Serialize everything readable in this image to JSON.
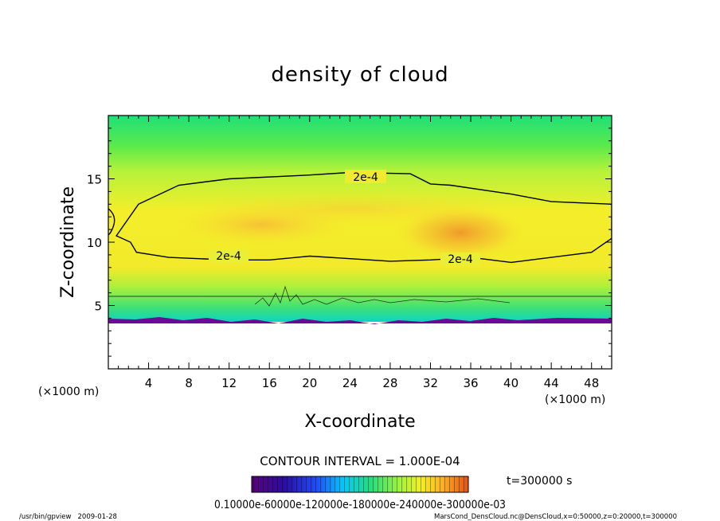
{
  "chart_data": {
    "type": "heatmap",
    "title": "density of cloud",
    "xlabel": "X-coordinate",
    "ylabel": "Z-coordinate",
    "x_unit": "(×1000 m)",
    "z_unit": "(×1000 m)",
    "xlim": [
      0,
      50
    ],
    "ylim": [
      0,
      20
    ],
    "x_ticks": [
      "4",
      "8",
      "12",
      "16",
      "20",
      "24",
      "28",
      "32",
      "36",
      "40",
      "44",
      "48"
    ],
    "y_ticks": [
      "5",
      "10",
      "15"
    ],
    "contour_label": "2e-4",
    "contour_interval_text": "CONTOUR INTERVAL = 1.000E-04",
    "time_text": "t=300000 s",
    "colorbar_labels_text": "0.10000e-60000e-120000e-180000e-240000e-300000e-03",
    "colormap": [
      "#5b007a",
      "#2a0ca8",
      "#1e4cff",
      "#00c8ff",
      "#22e07a",
      "#9cf53a",
      "#f2f01e",
      "#ffb020",
      "#e85010"
    ],
    "footer_left": "/usr/bin/gpview   2009-01-28",
    "footer_right": "MarsCond_DensCloud.nc@DensCloud,x=0:50000,z=0:20000,t=300000",
    "cloud_base_z": 4.5,
    "contour_2e4_outline": [
      [
        0.8,
        10.5
      ],
      [
        3,
        13
      ],
      [
        7,
        14.5
      ],
      [
        12,
        15
      ],
      [
        20,
        15.3
      ],
      [
        24,
        15.5
      ],
      [
        30,
        15.4
      ],
      [
        32,
        14.6
      ],
      [
        34,
        14.5
      ],
      [
        40,
        13.8
      ],
      [
        44,
        13.2
      ],
      [
        50,
        13
      ],
      [
        50,
        10.3
      ],
      [
        48,
        9.2
      ],
      [
        44,
        8.8
      ],
      [
        40,
        8.4
      ],
      [
        36,
        8.8
      ],
      [
        32,
        8.6
      ],
      [
        28,
        8.5
      ],
      [
        24,
        8.7
      ],
      [
        20,
        8.9
      ],
      [
        16,
        8.6
      ],
      [
        12,
        8.6
      ],
      [
        6,
        8.8
      ],
      [
        2.8,
        9.2
      ],
      [
        2.2,
        10
      ]
    ]
  }
}
